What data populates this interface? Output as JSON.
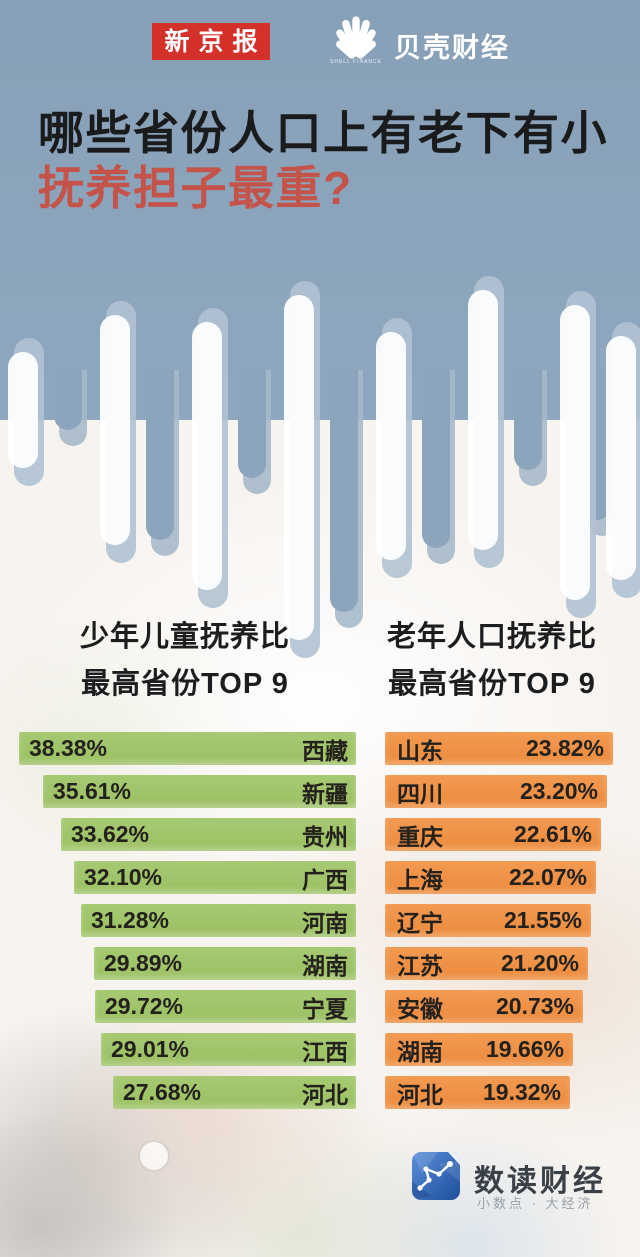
{
  "header": {
    "masthead": "新京报",
    "brand_name": "贝壳财经",
    "brand_caption": "SHELL FINANCE",
    "title_line1": "哪些省份人口上有老下有小",
    "title_line2": "抚养担子最重?"
  },
  "chart_data": [
    {
      "type": "bar",
      "orientation": "horizontal",
      "alignment": "right",
      "title_line1": "少年儿童抚养比",
      "title_line2": "最高省份TOP 9",
      "unit": "%",
      "bar_color": "#9dc163",
      "value_label_position": "inside-left",
      "category_label_position": "inside-right",
      "categories": [
        "西藏",
        "新疆",
        "贵州",
        "广西",
        "河南",
        "湖南",
        "宁夏",
        "江西",
        "河北"
      ],
      "values": [
        38.38,
        35.61,
        33.62,
        32.1,
        31.28,
        29.89,
        29.72,
        29.01,
        27.68
      ]
    },
    {
      "type": "bar",
      "orientation": "horizontal",
      "alignment": "left",
      "title_line1": "老年人口抚养比",
      "title_line2": "最高省份TOP 9",
      "unit": "%",
      "bar_color": "#ee8f43",
      "value_label_position": "inside-right",
      "category_label_position": "inside-left",
      "categories": [
        "山东",
        "四川",
        "重庆",
        "上海",
        "辽宁",
        "江苏",
        "安徽",
        "湖南",
        "河北"
      ],
      "values": [
        23.82,
        23.2,
        22.61,
        22.07,
        21.55,
        21.2,
        20.73,
        19.66,
        19.32
      ]
    }
  ],
  "footer": {
    "brand": "数读财经",
    "slogan": "小数点 · 大经济"
  },
  "icons": {
    "brand_logo": "shell-icon",
    "footer_logo": "data-polygon-icon"
  },
  "colors": {
    "header_background": "#8ca5bc",
    "title_black": "#1a1b1d",
    "title_red": "#c4534a",
    "masthead_red": "#d3312a",
    "green_bar": "#9dc163",
    "orange_bar": "#ee8f43"
  }
}
